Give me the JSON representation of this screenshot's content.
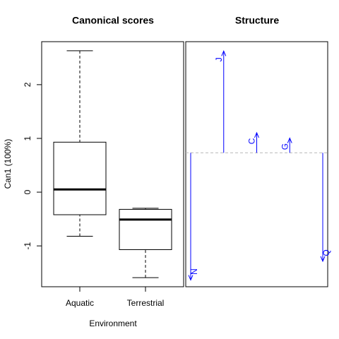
{
  "chart_data": [
    {
      "type": "boxplot",
      "title": "Canonical scores",
      "ylabel": "Can1 (100%)",
      "xlabel": "Environment",
      "categories": [
        "Aquatic",
        "Terrestrial"
      ],
      "min": [
        -0.82,
        -1.59
      ],
      "q1": [
        -0.42,
        -1.07
      ],
      "median": [
        0.05,
        -0.51
      ],
      "q3": [
        0.93,
        -0.32
      ],
      "max": [
        2.63,
        -0.3
      ],
      "ylim": [
        -1.76,
        2.8
      ],
      "yticks": [
        -1,
        0,
        1,
        2
      ]
    },
    {
      "type": "vector",
      "title": "Structure",
      "color": "#0000ff",
      "categories": [
        "N",
        "J",
        "C",
        "G",
        "Q"
      ],
      "values": [
        -0.95,
        0.76,
        0.15,
        0.11,
        -0.81
      ],
      "ylim": [
        -1,
        0.83
      ]
    }
  ]
}
